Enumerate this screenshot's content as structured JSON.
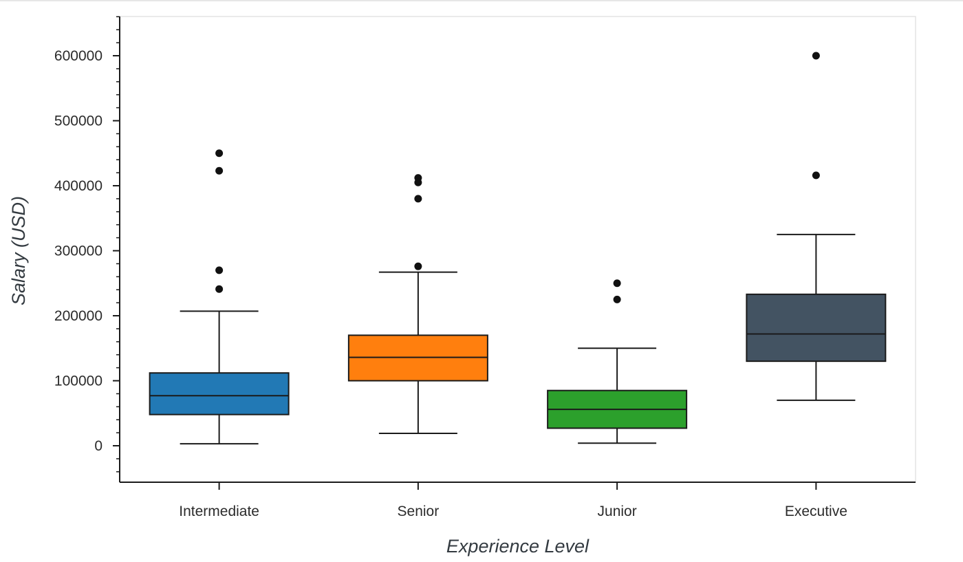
{
  "chart_data": {
    "type": "box",
    "xlabel": "Experience Level",
    "ylabel": "Salary (USD)",
    "ylim": [
      -57000,
      660000
    ],
    "yticks": [
      0,
      100000,
      200000,
      300000,
      400000,
      500000,
      600000
    ],
    "grid": false,
    "categories": [
      "Intermediate",
      "Senior",
      "Junior",
      "Executive"
    ],
    "boxes": [
      {
        "category": "Intermediate",
        "color": "#2279b5",
        "whisker_low": 3000,
        "q1": 48000,
        "median": 77000,
        "q3": 112000,
        "whisker_high": 207000,
        "outliers": [
          450000,
          423000,
          270000,
          241000
        ]
      },
      {
        "category": "Senior",
        "color": "#ff7f0e",
        "whisker_low": 19000,
        "q1": 100000,
        "median": 136000,
        "q3": 170000,
        "whisker_high": 267000,
        "outliers": [
          412000,
          405000,
          380000,
          276000
        ]
      },
      {
        "category": "Junior",
        "color": "#2ca02c",
        "whisker_low": 4000,
        "q1": 27000,
        "median": 56000,
        "q3": 85000,
        "whisker_high": 150000,
        "outliers": [
          250000,
          225000
        ]
      },
      {
        "category": "Executive",
        "color": "#435362",
        "whisker_low": 70000,
        "q1": 130000,
        "median": 172000,
        "q3": 233000,
        "whisker_high": 325000,
        "outliers": [
          600000,
          416000
        ]
      }
    ]
  }
}
